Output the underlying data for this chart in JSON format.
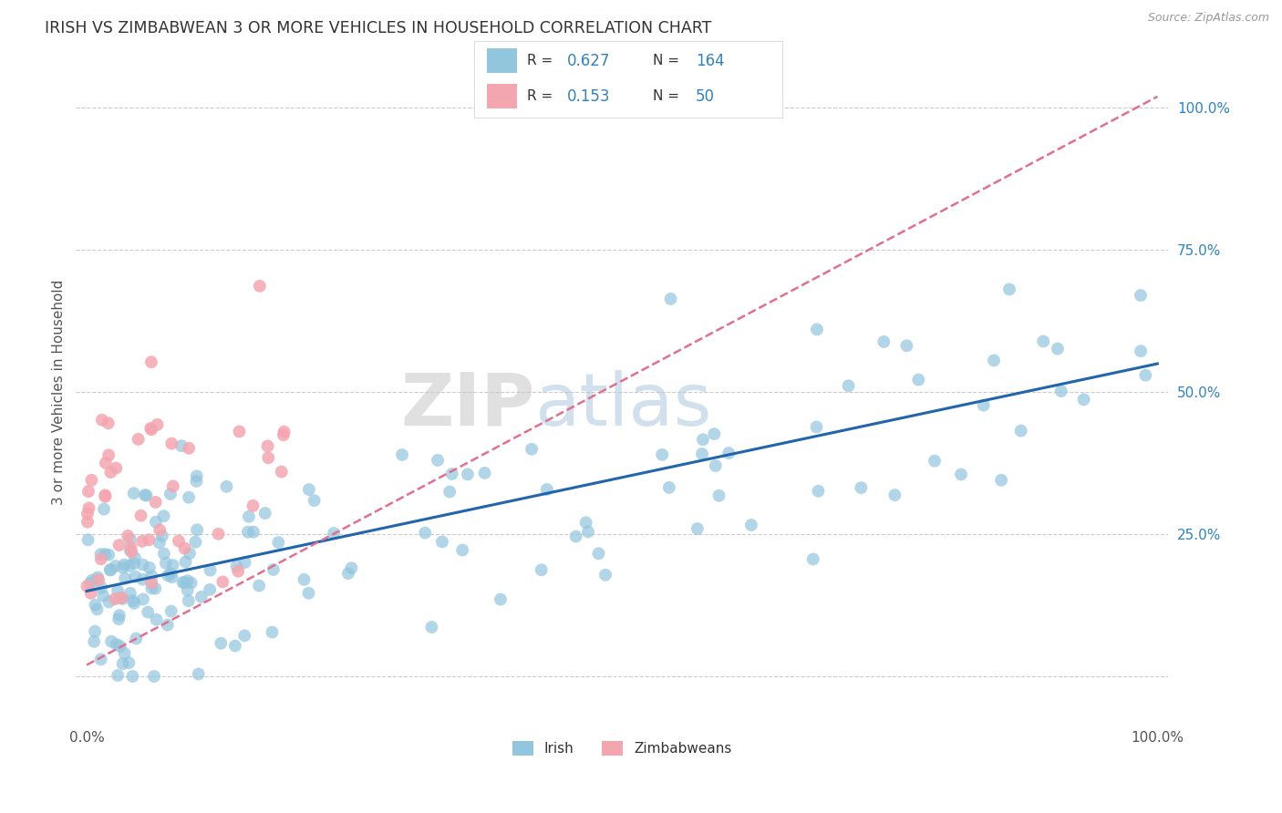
{
  "title": "IRISH VS ZIMBABWEAN 3 OR MORE VEHICLES IN HOUSEHOLD CORRELATION CHART",
  "source_text": "Source: ZipAtlas.com",
  "ylabel": "3 or more Vehicles in Household",
  "watermark_zip": "ZIP",
  "watermark_atlas": "atlas",
  "legend_irish_R": "0.627",
  "legend_irish_N": "164",
  "legend_zimb_R": "0.153",
  "legend_zimb_N": "50",
  "xlim": [
    -1,
    101
  ],
  "ylim": [
    -8,
    108
  ],
  "irish_color": "#92c5de",
  "zimb_color": "#f4a6b0",
  "trend_irish_color": "#2166ac",
  "trend_zimb_color": "#e07090",
  "background_color": "#ffffff",
  "grid_color": "#cccccc",
  "title_color": "#333333",
  "axis_label_color": "#555555",
  "right_tick_color": "#3182bd",
  "legend_value_color": "#3182bd",
  "irish_trend_x0": 0,
  "irish_trend_y0": 15,
  "irish_trend_x1": 100,
  "irish_trend_y1": 55,
  "zimb_trend_x0": 0,
  "zimb_trend_y0": 2,
  "zimb_trend_x1": 100,
  "zimb_trend_y1": 102
}
